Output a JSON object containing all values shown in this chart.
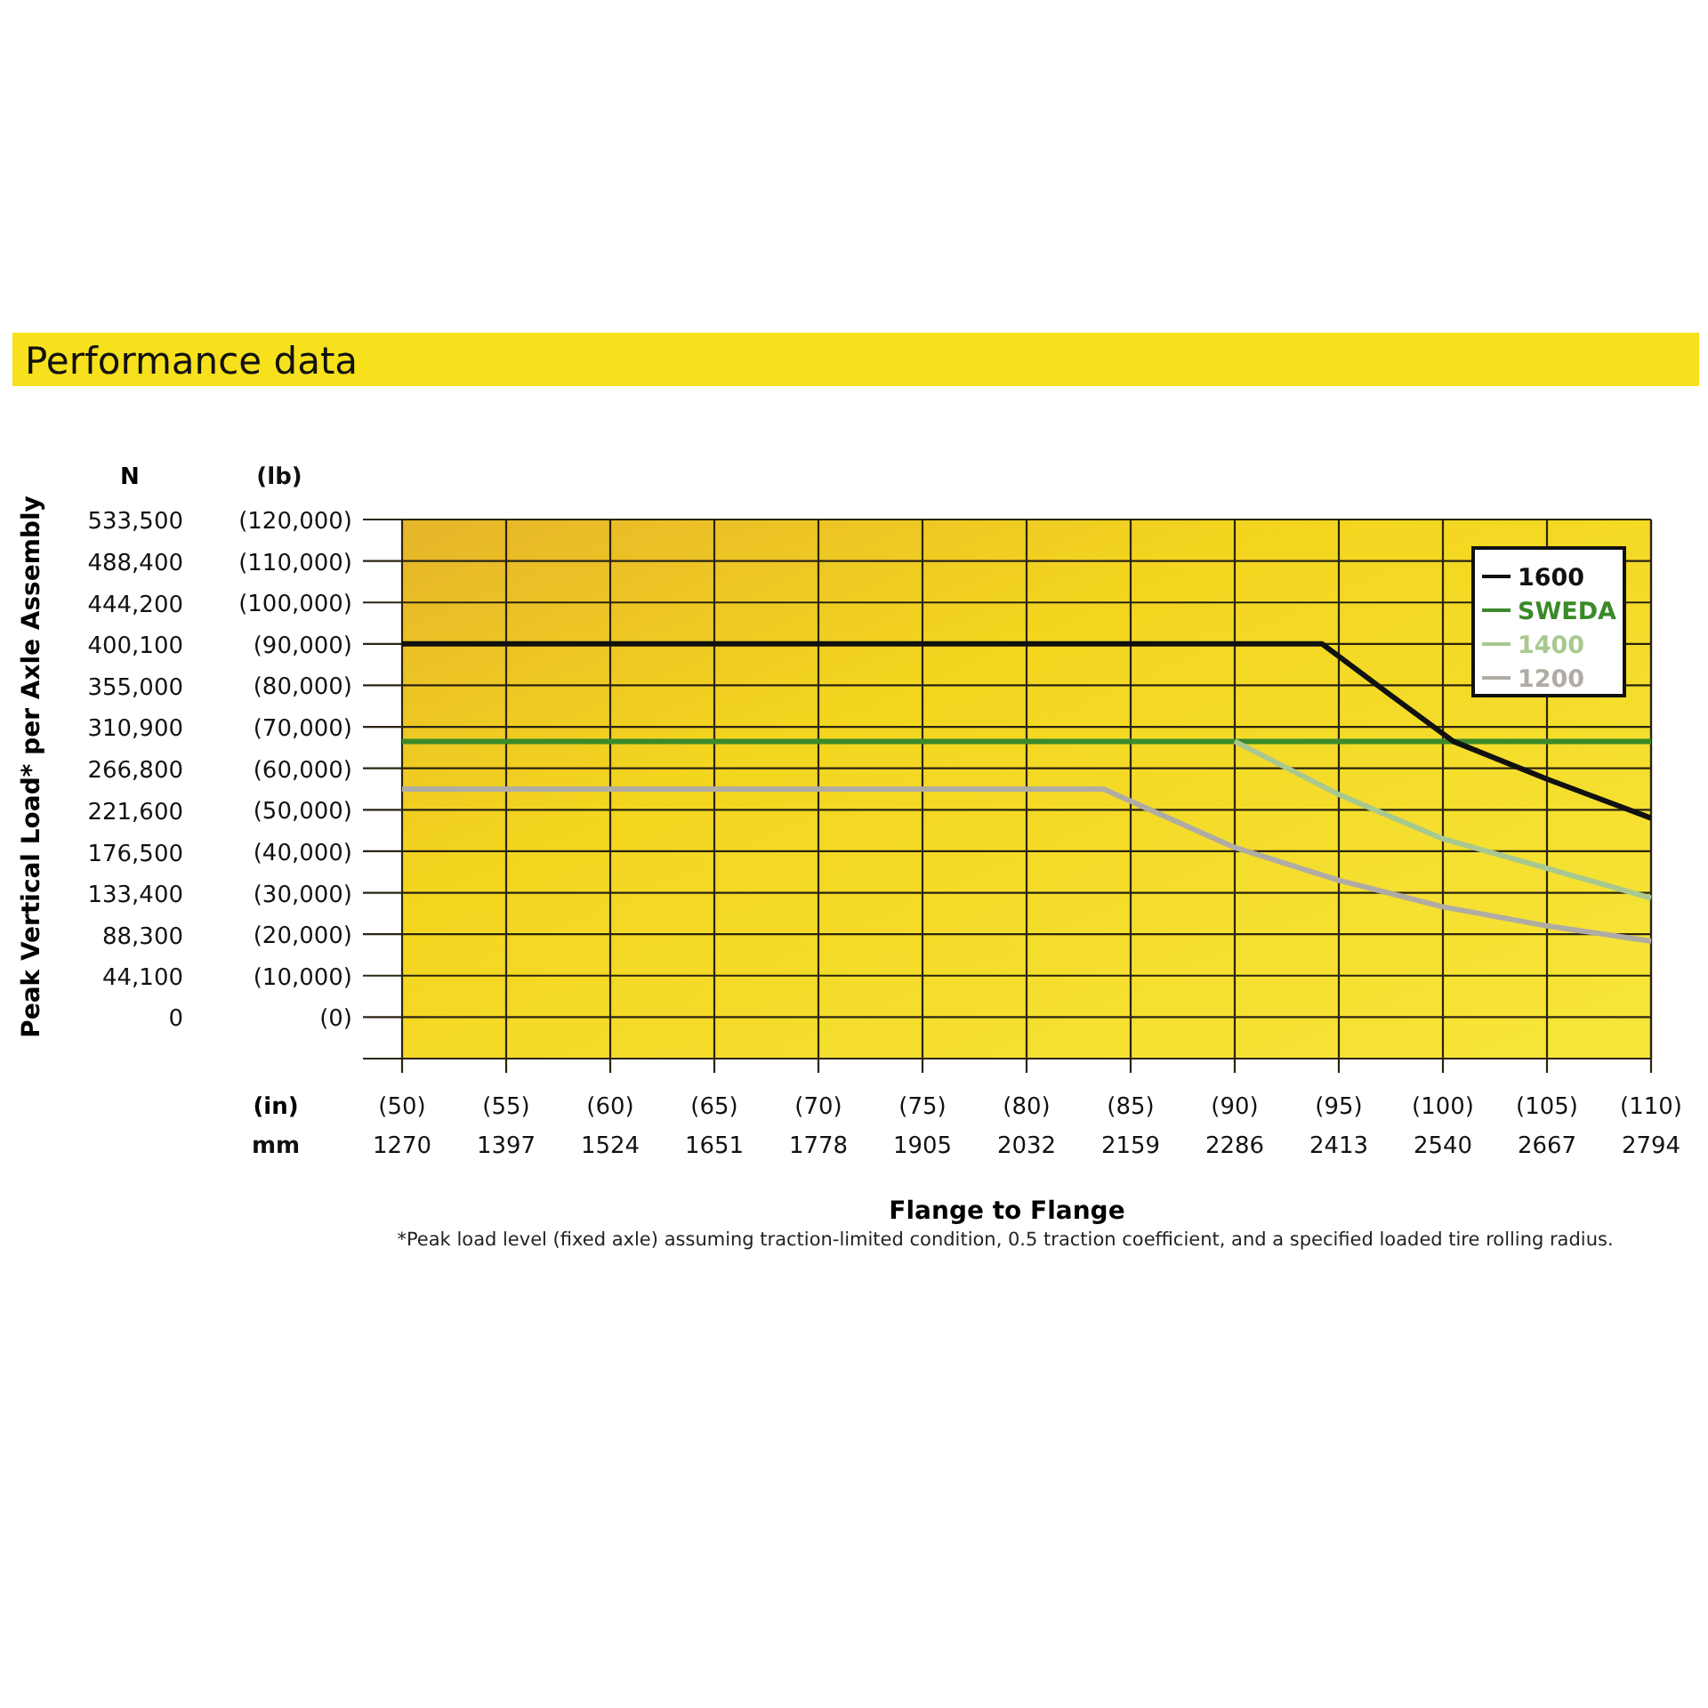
{
  "chart_data": {
    "type": "line",
    "title": "Performance data",
    "xlabel": "Flange to Flange",
    "ylabel": "Peak Vertical Load* per Axle Assembly",
    "y2label": "(lb)",
    "x2label": "mm",
    "annotations": [
      "N",
      "(in)",
      "*Peak load level (fixed axle) assuming traction-limited condition, 0.5 traction coefficient, and a specified loaded tire rolling radius."
    ],
    "xlim": [
      50,
      110
    ],
    "xticks": [
      {
        "value": 50,
        "label": "(50)"
      },
      {
        "value": 55,
        "label": "(55)"
      },
      {
        "value": 60,
        "label": "(60)"
      },
      {
        "value": 65,
        "label": "(65)"
      },
      {
        "value": 70,
        "label": "(70)"
      },
      {
        "value": 75,
        "label": "(75)"
      },
      {
        "value": 80,
        "label": "(80)"
      },
      {
        "value": 85,
        "label": "(85)"
      },
      {
        "value": 90,
        "label": "(90)"
      },
      {
        "value": 95,
        "label": "(95)"
      },
      {
        "value": 100,
        "label": "(100)"
      },
      {
        "value": 105,
        "label": "(105)"
      },
      {
        "value": 110,
        "label": "(110)"
      }
    ],
    "x2lim": [
      1270,
      2794
    ],
    "x2ticks": [
      1270,
      1397,
      1524,
      1651,
      1778,
      1905,
      2032,
      2159,
      2286,
      2413,
      2540,
      2667,
      2794
    ],
    "y2lim": [
      -10000,
      120000
    ],
    "y2ticks": [
      {
        "value": 0,
        "label": "(0)"
      },
      {
        "value": 10000,
        "label": "(10,000)"
      },
      {
        "value": 20000,
        "label": "(20,000)"
      },
      {
        "value": 30000,
        "label": "(30,000)"
      },
      {
        "value": 40000,
        "label": "(40,000)"
      },
      {
        "value": 50000,
        "label": "(50,000)"
      },
      {
        "value": 60000,
        "label": "(60,000)"
      },
      {
        "value": 70000,
        "label": "(70,000)"
      },
      {
        "value": 80000,
        "label": "(80,000)"
      },
      {
        "value": 90000,
        "label": "(90,000)"
      },
      {
        "value": 100000,
        "label": "(100,000)"
      },
      {
        "value": 110000,
        "label": "(110,000)"
      },
      {
        "value": 120000,
        "label": "(120,000)"
      }
    ],
    "ylim": [
      -44460,
      533500
    ],
    "yticks": [
      {
        "value": 0,
        "label": "0"
      },
      {
        "value": 44100,
        "label": "44,100"
      },
      {
        "value": 88300,
        "label": "88,300"
      },
      {
        "value": 133400,
        "label": "133,400"
      },
      {
        "value": 176500,
        "label": "176,500"
      },
      {
        "value": 221600,
        "label": "221,600"
      },
      {
        "value": 266800,
        "label": "266,800"
      },
      {
        "value": 310900,
        "label": "310,900"
      },
      {
        "value": 355000,
        "label": "355,000"
      },
      {
        "value": 400100,
        "label": "400,100"
      },
      {
        "value": 444200,
        "label": "444,200"
      },
      {
        "value": 488400,
        "label": "488,400"
      },
      {
        "value": 533500,
        "label": "533,500"
      }
    ],
    "grid": true,
    "legend": "top right",
    "marker": "none",
    "line_style": "solid",
    "series": [
      {
        "name": "1600",
        "color": "#111111",
        "axis": "y2",
        "x": [
          50,
          94.2,
          97.4,
          100.5,
          105,
          110
        ],
        "values": [
          90000,
          90000,
          78000,
          66500,
          57400,
          48000
        ]
      },
      {
        "name": "SWEDA",
        "color": "#3a8a2a",
        "axis": "y2",
        "x": [
          50,
          110
        ],
        "values": [
          66500,
          66500
        ]
      },
      {
        "name": "1400",
        "color": "#a8c890",
        "axis": "y2",
        "x": [
          90,
          95,
          100,
          105,
          110
        ],
        "values": [
          66500,
          53700,
          43000,
          35900,
          28700
        ]
      },
      {
        "name": "1200",
        "color": "#b0aca4",
        "axis": "y2",
        "x": [
          50,
          83.7,
          90,
          95,
          100,
          105,
          110
        ],
        "values": [
          55000,
          55000,
          40900,
          33000,
          26600,
          22000,
          18300
        ]
      }
    ]
  }
}
